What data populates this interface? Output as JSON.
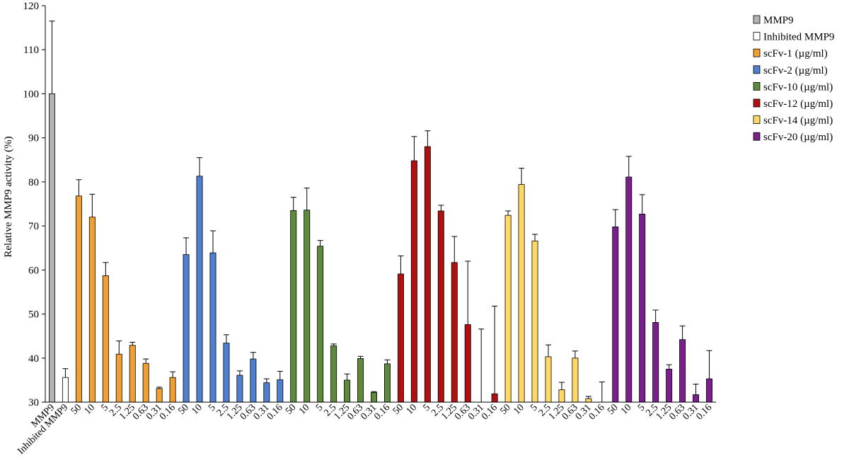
{
  "chart_data": {
    "type": "bar",
    "title": "",
    "xlabel": "",
    "ylabel": "Relative MMP9 activity (%)",
    "ylim": [
      30,
      120
    ],
    "yticks": [
      30,
      40,
      50,
      60,
      70,
      80,
      90,
      100,
      110,
      120
    ],
    "grid": false,
    "legend_position": "top-right",
    "series": [
      {
        "name": "MMP9",
        "color": "#b3b3b3",
        "categories": [
          "MMP9"
        ],
        "values": [
          100
        ],
        "errors": [
          16.5
        ]
      },
      {
        "name": "Inhibited MMP9",
        "color": "#ffffff",
        "categories": [
          "Inhibited MMP9"
        ],
        "values": [
          35.6
        ],
        "errors": [
          2
        ]
      },
      {
        "name": "scFv-1 (µg/ml)",
        "color": "#f0a030",
        "categories": [
          "50",
          "10",
          "5",
          "2.5",
          "1.25",
          "0.63",
          "0.31",
          "0.16"
        ],
        "values": [
          76.8,
          72.0,
          58.7,
          40.9,
          42.9,
          38.8,
          33.1,
          35.6
        ],
        "errors": [
          3.7,
          5.2,
          3.0,
          3.0,
          0.7,
          1.0,
          0.3,
          1.3
        ]
      },
      {
        "name": "scFv-2 (µg/ml)",
        "color": "#4f7fcf",
        "categories": [
          "50",
          "10",
          "5",
          "2.5",
          "1.25",
          "0.63",
          "0.31",
          "0.16"
        ],
        "values": [
          63.5,
          81.3,
          63.9,
          43.4,
          36.1,
          39.8,
          34.4,
          35.1
        ],
        "errors": [
          3.8,
          4.2,
          5.0,
          1.9,
          1.0,
          1.5,
          0.9,
          1.9
        ]
      },
      {
        "name": "scFv-10 (µg/ml)",
        "color": "#5e8a3c",
        "categories": [
          "50",
          "10",
          "5",
          "2.5",
          "1.25",
          "0.63",
          "0.31",
          "0.16"
        ],
        "values": [
          73.5,
          73.6,
          65.4,
          42.8,
          35.0,
          39.9,
          32.2,
          38.7
        ],
        "errors": [
          3.0,
          5.0,
          1.3,
          0.4,
          1.4,
          0.5,
          0.2,
          0.9
        ]
      },
      {
        "name": "scFv-12 (µg/ml)",
        "color": "#b01010",
        "categories": [
          "50",
          "10",
          "5",
          "2.5",
          "1.25",
          "0.63",
          "0.31",
          "0.16"
        ],
        "values": [
          59.1,
          84.8,
          88.0,
          73.4,
          61.7,
          47.6,
          30,
          31.9
        ],
        "errors": [
          4.1,
          5.5,
          3.6,
          1.3,
          5.9,
          14.4,
          16.6,
          19.9
        ]
      },
      {
        "name": "scFv-14 (µg/ml)",
        "color": "#ffd966",
        "categories": [
          "50",
          "10",
          "5",
          "2.5",
          "1.25",
          "0.63",
          "0.31",
          "0.16"
        ],
        "values": [
          72.4,
          79.4,
          66.6,
          40.3,
          32.8,
          40.0,
          30.8,
          30
        ],
        "errors": [
          1.0,
          3.7,
          1.5,
          2.7,
          1.7,
          1.6,
          0.5,
          4.6
        ]
      },
      {
        "name": "scFv-20 (µg/ml)",
        "color": "#7b1f8c",
        "categories": [
          "50",
          "10",
          "5",
          "2.5",
          "1.25",
          "0.63",
          "0.31",
          "0.16"
        ],
        "values": [
          69.8,
          81.1,
          72.7,
          48.1,
          37.5,
          44.2,
          31.7,
          35.3
        ],
        "errors": [
          3.9,
          4.7,
          4.4,
          2.8,
          1.0,
          3.1,
          2.4,
          6.4
        ]
      }
    ]
  }
}
